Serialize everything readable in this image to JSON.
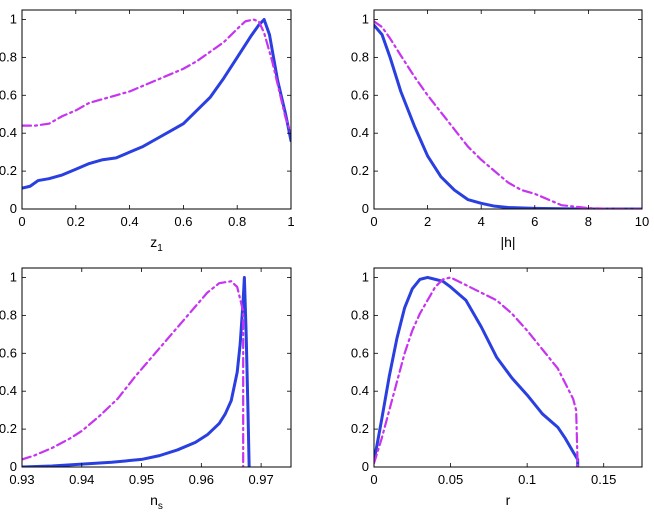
{
  "colors": {
    "solid": "#2a3fe0",
    "dashdot": "#c634f0"
  },
  "chart_data": [
    {
      "type": "line",
      "xlabel": "z",
      "xlabel_sub": "1",
      "xlim": [
        0,
        1
      ],
      "ylim": [
        0,
        1.05
      ],
      "xticks": [
        0,
        0.2,
        0.4,
        0.6,
        0.8,
        1
      ],
      "xtick_labels": [
        "0",
        "0.2",
        "0.4",
        "0.6",
        "0.8",
        "1"
      ],
      "yticks": [
        0,
        0.2,
        0.4,
        0.6,
        0.8,
        1
      ],
      "ytick_labels": [
        "0",
        "0.2",
        "0.4",
        "0.6",
        "0.8",
        "1"
      ],
      "series": [
        {
          "style": "solid",
          "x": [
            0,
            0.03,
            0.06,
            0.1,
            0.15,
            0.2,
            0.25,
            0.3,
            0.35,
            0.4,
            0.45,
            0.5,
            0.55,
            0.6,
            0.65,
            0.7,
            0.75,
            0.8,
            0.85,
            0.88,
            0.9,
            0.92,
            0.95,
            0.98,
            1
          ],
          "y": [
            0.11,
            0.12,
            0.15,
            0.16,
            0.18,
            0.21,
            0.24,
            0.26,
            0.27,
            0.3,
            0.33,
            0.37,
            0.41,
            0.45,
            0.52,
            0.59,
            0.69,
            0.8,
            0.91,
            0.97,
            1.0,
            0.92,
            0.68,
            0.5,
            0.36
          ]
        },
        {
          "style": "dashdot",
          "x": [
            0,
            0.05,
            0.1,
            0.15,
            0.2,
            0.25,
            0.3,
            0.35,
            0.4,
            0.45,
            0.5,
            0.55,
            0.6,
            0.65,
            0.7,
            0.75,
            0.8,
            0.83,
            0.86,
            0.88,
            0.9,
            0.93,
            0.96,
            0.98,
            1
          ],
          "y": [
            0.44,
            0.44,
            0.45,
            0.49,
            0.52,
            0.56,
            0.58,
            0.6,
            0.62,
            0.65,
            0.68,
            0.71,
            0.74,
            0.78,
            0.83,
            0.88,
            0.95,
            0.99,
            1.0,
            0.99,
            0.93,
            0.78,
            0.6,
            0.48,
            0.4
          ]
        }
      ]
    },
    {
      "type": "line",
      "xlabel": "|h|",
      "xlabel_sub": "",
      "xlim": [
        0,
        10
      ],
      "ylim": [
        0,
        1.05
      ],
      "xticks": [
        0,
        2,
        4,
        6,
        8,
        10
      ],
      "xtick_labels": [
        "0",
        "2",
        "4",
        "6",
        "8",
        "10"
      ],
      "yticks": [
        0,
        0.2,
        0.4,
        0.6,
        0.8,
        1
      ],
      "ytick_labels": [
        "0",
        "0.2",
        "0.4",
        "0.6",
        "0.8",
        "1"
      ],
      "series": [
        {
          "style": "solid",
          "x": [
            0,
            0.3,
            0.6,
            1,
            1.5,
            2,
            2.5,
            3,
            3.5,
            4,
            4.5,
            5,
            6,
            7,
            8,
            9,
            10
          ],
          "y": [
            0.97,
            0.92,
            0.8,
            0.62,
            0.44,
            0.28,
            0.17,
            0.1,
            0.05,
            0.03,
            0.015,
            0.008,
            0.003,
            0.001,
            0,
            0,
            0
          ]
        },
        {
          "style": "dashdot",
          "x": [
            0,
            0.3,
            0.6,
            1,
            1.5,
            2,
            2.5,
            3,
            3.5,
            4,
            4.5,
            5,
            5.5,
            6,
            6.5,
            7,
            8,
            9,
            10
          ],
          "y": [
            0.99,
            0.96,
            0.9,
            0.81,
            0.7,
            0.6,
            0.51,
            0.42,
            0.33,
            0.26,
            0.2,
            0.14,
            0.1,
            0.08,
            0.05,
            0.02,
            0.005,
            0,
            0
          ]
        }
      ]
    },
    {
      "type": "line",
      "xlabel": "n",
      "xlabel_sub": "s",
      "xlim": [
        0.93,
        0.975
      ],
      "ylim": [
        0,
        1.05
      ],
      "xticks": [
        0.93,
        0.94,
        0.95,
        0.96,
        0.97
      ],
      "xtick_labels": [
        "0.93",
        "0.94",
        "0.95",
        "0.96",
        "0.97"
      ],
      "yticks": [
        0,
        0.2,
        0.4,
        0.6,
        0.8,
        1
      ],
      "ytick_labels": [
        "0",
        "0.2",
        "0.4",
        "0.6",
        "0.8",
        "1"
      ],
      "series": [
        {
          "style": "solid",
          "x": [
            0.93,
            0.935,
            0.94,
            0.945,
            0.95,
            0.953,
            0.956,
            0.959,
            0.961,
            0.963,
            0.964,
            0.965,
            0.966,
            0.9665,
            0.967,
            0.9672,
            0.9675,
            0.9678,
            0.968
          ],
          "y": [
            0.0,
            0.005,
            0.015,
            0.025,
            0.04,
            0.06,
            0.09,
            0.13,
            0.17,
            0.23,
            0.28,
            0.35,
            0.5,
            0.65,
            0.88,
            1.0,
            0.7,
            0.3,
            0.0
          ]
        },
        {
          "style": "dashdot",
          "x": [
            0.93,
            0.932,
            0.935,
            0.938,
            0.94,
            0.943,
            0.946,
            0.949,
            0.952,
            0.955,
            0.958,
            0.961,
            0.963,
            0.965,
            0.966,
            0.967,
            0.967
          ],
          "y": [
            0.04,
            0.06,
            0.1,
            0.15,
            0.19,
            0.27,
            0.36,
            0.48,
            0.59,
            0.7,
            0.81,
            0.92,
            0.97,
            0.98,
            0.95,
            0.82,
            0.0
          ]
        }
      ]
    },
    {
      "type": "line",
      "xlabel": "r",
      "xlabel_sub": "",
      "xlim": [
        0,
        0.175
      ],
      "ylim": [
        0,
        1.05
      ],
      "xticks": [
        0,
        0.05,
        0.1,
        0.15
      ],
      "xtick_labels": [
        "0",
        "0.05",
        "0.1",
        "0.15"
      ],
      "yticks": [
        0,
        0.2,
        0.4,
        0.6,
        0.8,
        1
      ],
      "ytick_labels": [
        "0",
        "0.2",
        "0.4",
        "0.6",
        "0.8",
        "1"
      ],
      "series": [
        {
          "style": "solid",
          "x": [
            0,
            0.005,
            0.01,
            0.015,
            0.02,
            0.025,
            0.03,
            0.035,
            0.04,
            0.045,
            0.05,
            0.06,
            0.07,
            0.08,
            0.09,
            0.1,
            0.11,
            0.12,
            0.125,
            0.13,
            0.133,
            0.133
          ],
          "y": [
            0.03,
            0.25,
            0.48,
            0.68,
            0.84,
            0.94,
            0.99,
            1.0,
            0.99,
            0.98,
            0.95,
            0.88,
            0.74,
            0.58,
            0.47,
            0.38,
            0.28,
            0.21,
            0.15,
            0.08,
            0.04,
            0.0
          ]
        },
        {
          "style": "dashdot",
          "x": [
            0,
            0.005,
            0.01,
            0.015,
            0.02,
            0.025,
            0.03,
            0.035,
            0.04,
            0.045,
            0.05,
            0.055,
            0.06,
            0.07,
            0.08,
            0.09,
            0.1,
            0.11,
            0.12,
            0.13,
            0.132,
            0.133
          ],
          "y": [
            0.02,
            0.15,
            0.3,
            0.45,
            0.6,
            0.72,
            0.81,
            0.88,
            0.95,
            0.99,
            1.0,
            0.98,
            0.96,
            0.92,
            0.88,
            0.81,
            0.72,
            0.62,
            0.52,
            0.36,
            0.3,
            0.0
          ]
        }
      ]
    }
  ]
}
